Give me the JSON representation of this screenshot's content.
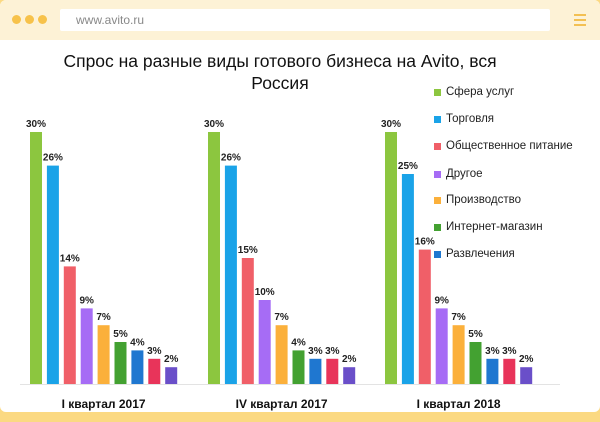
{
  "browser": {
    "url": "www.avito.ru"
  },
  "colors": {
    "page_background": "#fbd982",
    "browser_bar": "#fdf2d6",
    "window_dots": "#f7c24a"
  },
  "chart_data": {
    "type": "bar",
    "title": "Спрос на разные виды готового бизнеса на Avito, вся Россия",
    "xlabel": "",
    "ylabel": "",
    "ylim": [
      0,
      30
    ],
    "grid": false,
    "legend_position": "right",
    "categories": [
      "I квартал 2017",
      "IV квартал 2017",
      "I квартал 2018"
    ],
    "series": [
      {
        "name": "Сфера услуг",
        "color": "#8cc63f",
        "values": [
          30,
          30,
          30
        ],
        "labels": [
          "30%",
          "30%",
          "30%"
        ]
      },
      {
        "name": "Торговля",
        "color": "#1aa3e8",
        "values": [
          26,
          26,
          25
        ],
        "labels": [
          "26%",
          "26%",
          "25%"
        ]
      },
      {
        "name": "Общественное питание",
        "color": "#f05f68",
        "values": [
          14,
          15,
          16
        ],
        "labels": [
          "14%",
          "15%",
          "16%"
        ]
      },
      {
        "name": "Другое",
        "color": "#a66cf5",
        "values": [
          9,
          10,
          9
        ],
        "labels": [
          "9%",
          "10%",
          "9%"
        ]
      },
      {
        "name": "Производство",
        "color": "#fbb03b",
        "values": [
          7,
          7,
          7
        ],
        "labels": [
          "7%",
          "7%",
          "7%"
        ]
      },
      {
        "name": "Интернет-магазин",
        "color": "#43a131",
        "values": [
          5,
          4,
          5
        ],
        "labels": [
          "5%",
          "4%",
          "5%"
        ]
      },
      {
        "name": "Развлечения",
        "color": "#1f77d0",
        "values": [
          4,
          3,
          3
        ],
        "labels": [
          "4%",
          "3%",
          "3%"
        ]
      },
      {
        "name": "",
        "color": "#e8345a",
        "values": [
          3,
          3,
          3
        ],
        "labels": [
          "3%",
          "3%",
          "3%"
        ]
      },
      {
        "name": "",
        "color": "#6a4fc9",
        "values": [
          2,
          2,
          2
        ],
        "labels": [
          "2%",
          "2%",
          "2%"
        ]
      }
    ]
  }
}
